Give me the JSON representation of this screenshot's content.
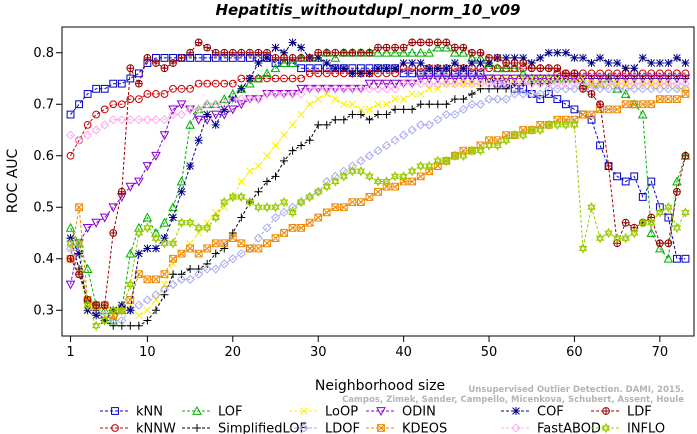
{
  "chart_data": {
    "type": "line",
    "title": "Hepatitis_withoutdupl_norm_10_v09",
    "xlabel": "Neighborhood size",
    "ylabel": "ROC AUC",
    "xlim": [
      0,
      74
    ],
    "ylim": [
      0.25,
      0.85
    ],
    "xticks": [
      1,
      10,
      20,
      30,
      40,
      50,
      60,
      70
    ],
    "yticks": [
      0.3,
      0.4,
      0.5,
      0.6,
      0.7,
      0.8
    ],
    "x": [
      1,
      2,
      3,
      4,
      5,
      6,
      7,
      8,
      9,
      10,
      11,
      12,
      13,
      14,
      15,
      16,
      17,
      18,
      19,
      20,
      21,
      22,
      23,
      24,
      25,
      26,
      27,
      28,
      29,
      30,
      31,
      32,
      33,
      34,
      35,
      36,
      37,
      38,
      39,
      40,
      41,
      42,
      43,
      44,
      45,
      46,
      47,
      48,
      49,
      50,
      51,
      52,
      53,
      54,
      55,
      56,
      57,
      58,
      59,
      60,
      61,
      62,
      63,
      64,
      65,
      66,
      67,
      68,
      69,
      70,
      71,
      72,
      73
    ],
    "legend_position": "bottom",
    "grid": false,
    "series": [
      {
        "name": "kNN",
        "color": "#0000cc",
        "marker": "square",
        "values": [
          0.68,
          0.7,
          0.72,
          0.73,
          0.73,
          0.74,
          0.74,
          0.75,
          0.76,
          0.78,
          0.79,
          0.79,
          0.79,
          0.79,
          0.79,
          0.79,
          0.79,
          0.79,
          0.79,
          0.79,
          0.79,
          0.79,
          0.79,
          0.79,
          0.78,
          0.78,
          0.78,
          0.77,
          0.77,
          0.77,
          0.77,
          0.77,
          0.77,
          0.77,
          0.77,
          0.77,
          0.77,
          0.77,
          0.77,
          0.76,
          0.76,
          0.76,
          0.76,
          0.76,
          0.76,
          0.76,
          0.76,
          0.76,
          0.76,
          0.75,
          0.74,
          0.74,
          0.73,
          0.73,
          0.72,
          0.71,
          0.72,
          0.71,
          0.7,
          0.69,
          0.68,
          0.67,
          0.62,
          0.58,
          0.56,
          0.55,
          0.56,
          0.52,
          0.55,
          0.5,
          0.48,
          0.4,
          0.4
        ]
      },
      {
        "name": "kNNW",
        "color": "#cc0000",
        "marker": "circle",
        "values": [
          0.6,
          0.63,
          0.66,
          0.68,
          0.69,
          0.7,
          0.7,
          0.71,
          0.71,
          0.72,
          0.72,
          0.72,
          0.73,
          0.73,
          0.73,
          0.74,
          0.74,
          0.74,
          0.74,
          0.74,
          0.75,
          0.75,
          0.75,
          0.75,
          0.75,
          0.75,
          0.75,
          0.75,
          0.76,
          0.76,
          0.76,
          0.76,
          0.76,
          0.76,
          0.76,
          0.76,
          0.76,
          0.76,
          0.76,
          0.77,
          0.77,
          0.77,
          0.77,
          0.77,
          0.77,
          0.77,
          0.77,
          0.77,
          0.77,
          0.77,
          0.77,
          0.77,
          0.77,
          0.77,
          0.77,
          0.77,
          0.77,
          0.76,
          0.76,
          0.76,
          0.76,
          0.76,
          0.76,
          0.76,
          0.76,
          0.76,
          0.76,
          0.76,
          0.76,
          0.76,
          0.76,
          0.76,
          0.76
        ]
      },
      {
        "name": "LOF",
        "color": "#00b000",
        "marker": "triangle",
        "values": [
          0.46,
          0.43,
          0.38,
          0.31,
          0.3,
          0.28,
          0.3,
          0.41,
          0.46,
          0.48,
          0.45,
          0.47,
          0.5,
          0.55,
          0.66,
          0.69,
          0.7,
          0.7,
          0.71,
          0.72,
          0.73,
          0.74,
          0.75,
          0.76,
          0.77,
          0.78,
          0.78,
          0.79,
          0.79,
          0.79,
          0.8,
          0.79,
          0.8,
          0.8,
          0.8,
          0.8,
          0.8,
          0.8,
          0.8,
          0.8,
          0.8,
          0.8,
          0.8,
          0.81,
          0.81,
          0.8,
          0.8,
          0.79,
          0.79,
          0.78,
          0.77,
          0.77,
          0.77,
          0.76,
          0.75,
          0.75,
          0.75,
          0.75,
          0.75,
          0.75,
          0.74,
          0.74,
          0.74,
          0.75,
          0.73,
          0.72,
          0.7,
          0.68,
          0.45,
          0.42,
          0.4,
          0.55,
          0.6
        ]
      },
      {
        "name": "SimplifiedLOF",
        "color": "#000000",
        "marker": "plus",
        "values": [
          0.44,
          0.38,
          0.32,
          0.3,
          0.28,
          0.27,
          0.27,
          0.27,
          0.27,
          0.28,
          0.3,
          0.33,
          0.37,
          0.37,
          0.38,
          0.38,
          0.39,
          0.41,
          0.42,
          0.45,
          0.48,
          0.51,
          0.53,
          0.55,
          0.56,
          0.59,
          0.61,
          0.62,
          0.63,
          0.66,
          0.66,
          0.67,
          0.67,
          0.68,
          0.68,
          0.67,
          0.68,
          0.68,
          0.69,
          0.69,
          0.69,
          0.7,
          0.7,
          0.7,
          0.7,
          0.71,
          0.71,
          0.72,
          0.73,
          0.73,
          0.73,
          0.73,
          0.74,
          0.74,
          0.74,
          0.74,
          0.74,
          0.75,
          0.75,
          0.75,
          0.75,
          0.75,
          0.75,
          0.75,
          0.75,
          0.75,
          0.75,
          0.75,
          0.75,
          0.75,
          0.75,
          0.75,
          0.75
        ]
      },
      {
        "name": "LoOP",
        "color": "#ffee00",
        "marker": "x",
        "values": [
          0.42,
          0.37,
          0.31,
          0.29,
          0.29,
          0.29,
          0.3,
          0.31,
          0.29,
          0.3,
          0.32,
          0.35,
          0.39,
          0.41,
          0.43,
          0.45,
          0.47,
          0.49,
          0.5,
          0.52,
          0.55,
          0.57,
          0.58,
          0.6,
          0.62,
          0.64,
          0.66,
          0.68,
          0.7,
          0.71,
          0.72,
          0.71,
          0.7,
          0.7,
          0.69,
          0.69,
          0.7,
          0.7,
          0.71,
          0.71,
          0.72,
          0.72,
          0.73,
          0.73,
          0.74,
          0.74,
          0.74,
          0.74,
          0.74,
          0.75,
          0.75,
          0.75,
          0.75,
          0.75,
          0.75,
          0.75,
          0.75,
          0.75,
          0.75,
          0.75,
          0.75,
          0.74,
          0.74,
          0.74,
          0.74,
          0.74,
          0.74,
          0.74,
          0.74,
          0.74,
          0.74,
          0.73,
          0.73
        ]
      },
      {
        "name": "LDOF",
        "color": "#aaaaee",
        "marker": "diamond",
        "values": [
          0.42,
          0.37,
          0.32,
          0.3,
          0.29,
          0.28,
          0.28,
          0.3,
          0.31,
          0.32,
          0.33,
          0.34,
          0.35,
          0.36,
          0.36,
          0.37,
          0.38,
          0.38,
          0.39,
          0.4,
          0.41,
          0.42,
          0.44,
          0.46,
          0.48,
          0.49,
          0.5,
          0.51,
          0.52,
          0.53,
          0.55,
          0.56,
          0.57,
          0.58,
          0.59,
          0.6,
          0.61,
          0.62,
          0.63,
          0.64,
          0.65,
          0.66,
          0.66,
          0.67,
          0.68,
          0.68,
          0.69,
          0.7,
          0.7,
          0.71,
          0.71,
          0.71,
          0.72,
          0.72,
          0.72,
          0.72,
          0.73,
          0.73,
          0.73,
          0.73,
          0.73,
          0.73,
          0.73,
          0.73,
          0.73,
          0.73,
          0.73,
          0.73,
          0.73,
          0.73,
          0.73,
          0.73,
          0.73
        ]
      },
      {
        "name": "ODIN",
        "color": "#8800cc",
        "marker": "invtriangle",
        "values": [
          0.35,
          0.43,
          0.46,
          0.47,
          0.48,
          0.5,
          0.52,
          0.54,
          0.55,
          0.58,
          0.6,
          0.64,
          0.69,
          0.7,
          0.69,
          0.67,
          0.67,
          0.68,
          0.68,
          0.69,
          0.7,
          0.71,
          0.71,
          0.72,
          0.72,
          0.72,
          0.72,
          0.73,
          0.73,
          0.73,
          0.73,
          0.73,
          0.73,
          0.73,
          0.73,
          0.74,
          0.74,
          0.74,
          0.74,
          0.74,
          0.74,
          0.75,
          0.75,
          0.75,
          0.75,
          0.75,
          0.75,
          0.75,
          0.75,
          0.75,
          0.75,
          0.75,
          0.75,
          0.75,
          0.75,
          0.75,
          0.75,
          0.75,
          0.75,
          0.75,
          0.75,
          0.75,
          0.75,
          0.75,
          0.75,
          0.75,
          0.75,
          0.75,
          0.75,
          0.75,
          0.75,
          0.75,
          0.75
        ]
      },
      {
        "name": "KDEOS",
        "color": "#ee8800",
        "marker": "square-x",
        "values": [
          0.4,
          0.5,
          0.32,
          0.31,
          0.31,
          0.29,
          0.3,
          0.32,
          0.37,
          0.36,
          0.36,
          0.37,
          0.4,
          0.41,
          0.42,
          0.41,
          0.42,
          0.43,
          0.43,
          0.44,
          0.43,
          0.42,
          0.42,
          0.43,
          0.44,
          0.45,
          0.46,
          0.46,
          0.47,
          0.48,
          0.49,
          0.5,
          0.5,
          0.51,
          0.51,
          0.52,
          0.53,
          0.54,
          0.54,
          0.55,
          0.55,
          0.56,
          0.57,
          0.58,
          0.59,
          0.6,
          0.61,
          0.61,
          0.62,
          0.63,
          0.63,
          0.64,
          0.64,
          0.65,
          0.65,
          0.66,
          0.66,
          0.67,
          0.67,
          0.67,
          0.68,
          0.68,
          0.69,
          0.69,
          0.69,
          0.7,
          0.7,
          0.7,
          0.7,
          0.71,
          0.71,
          0.71,
          0.72
        ]
      },
      {
        "name": "COF",
        "color": "#000088",
        "marker": "asterisk",
        "values": [
          0.44,
          0.41,
          0.3,
          0.29,
          0.28,
          0.3,
          0.31,
          0.3,
          0.41,
          0.42,
          0.42,
          0.44,
          0.48,
          0.53,
          0.58,
          0.63,
          0.68,
          0.66,
          0.69,
          0.71,
          0.73,
          0.75,
          0.78,
          0.79,
          0.81,
          0.8,
          0.82,
          0.81,
          0.79,
          0.79,
          0.78,
          0.77,
          0.77,
          0.76,
          0.76,
          0.76,
          0.77,
          0.77,
          0.77,
          0.78,
          0.78,
          0.78,
          0.77,
          0.77,
          0.77,
          0.78,
          0.77,
          0.78,
          0.78,
          0.78,
          0.79,
          0.79,
          0.79,
          0.79,
          0.78,
          0.79,
          0.8,
          0.8,
          0.8,
          0.79,
          0.79,
          0.78,
          0.79,
          0.78,
          0.78,
          0.77,
          0.77,
          0.79,
          0.78,
          0.78,
          0.78,
          0.79,
          0.78
        ]
      },
      {
        "name": "FastABOD",
        "color": "#ffaaee",
        "marker": "diamond",
        "values": [
          0.64,
          0.63,
          0.64,
          0.65,
          0.66,
          0.67,
          0.67,
          0.67,
          0.67,
          0.67,
          0.67,
          0.67,
          0.68,
          0.68,
          0.69,
          0.69,
          0.7,
          0.7,
          0.7,
          0.71,
          0.71,
          0.71,
          0.71,
          0.72,
          0.72,
          0.72,
          0.72,
          0.72,
          0.73,
          0.73,
          0.73,
          0.73,
          0.73,
          0.73,
          0.73,
          0.73,
          0.73,
          0.73,
          0.73,
          0.74,
          0.74,
          0.74,
          0.74,
          0.74,
          0.74,
          0.74,
          0.74,
          0.74,
          0.74,
          0.74,
          0.74,
          0.74,
          0.74,
          0.74,
          0.74,
          0.74,
          0.74,
          0.74,
          0.74,
          0.74,
          0.74,
          0.74,
          0.74,
          0.74,
          0.74,
          0.74,
          0.74,
          0.74,
          0.74,
          0.74,
          0.74,
          0.74,
          0.74
        ]
      },
      {
        "name": "LDF",
        "color": "#990000",
        "marker": "circle-plus",
        "values": [
          0.4,
          0.37,
          0.32,
          0.31,
          0.31,
          0.45,
          0.53,
          0.77,
          0.74,
          0.79,
          0.78,
          0.77,
          0.78,
          0.79,
          0.8,
          0.82,
          0.81,
          0.8,
          0.8,
          0.8,
          0.8,
          0.8,
          0.8,
          0.8,
          0.79,
          0.79,
          0.79,
          0.79,
          0.79,
          0.8,
          0.8,
          0.8,
          0.8,
          0.8,
          0.8,
          0.8,
          0.81,
          0.81,
          0.81,
          0.81,
          0.82,
          0.82,
          0.82,
          0.82,
          0.82,
          0.81,
          0.81,
          0.8,
          0.8,
          0.79,
          0.79,
          0.78,
          0.78,
          0.78,
          0.77,
          0.77,
          0.77,
          0.77,
          0.76,
          0.76,
          0.73,
          0.72,
          0.7,
          0.58,
          0.43,
          0.47,
          0.46,
          0.47,
          0.48,
          0.43,
          0.43,
          0.53,
          0.6
        ]
      },
      {
        "name": "INFLO",
        "color": "#99cc00",
        "marker": "star",
        "values": [
          0.43,
          0.43,
          0.31,
          0.27,
          0.28,
          0.3,
          0.3,
          0.35,
          0.45,
          0.46,
          0.44,
          0.43,
          0.43,
          0.47,
          0.47,
          0.46,
          0.46,
          0.48,
          0.51,
          0.52,
          0.52,
          0.51,
          0.5,
          0.5,
          0.5,
          0.51,
          0.49,
          0.51,
          0.52,
          0.53,
          0.54,
          0.55,
          0.56,
          0.57,
          0.57,
          0.56,
          0.55,
          0.55,
          0.56,
          0.56,
          0.57,
          0.58,
          0.58,
          0.59,
          0.59,
          0.6,
          0.6,
          0.61,
          0.61,
          0.62,
          0.62,
          0.63,
          0.64,
          0.64,
          0.65,
          0.65,
          0.66,
          0.66,
          0.66,
          0.66,
          0.42,
          0.5,
          0.44,
          0.45,
          0.44,
          0.44,
          0.45,
          0.47,
          0.47,
          0.49,
          0.5,
          0.46,
          0.49
        ]
      }
    ]
  },
  "credit": {
    "line1": "Unsupervised Outlier Detection. DAMI, 2015.",
    "line2": "Campos, Zimek, Sander, Campello, Micenkova, Schubert, Assent, Houle"
  }
}
